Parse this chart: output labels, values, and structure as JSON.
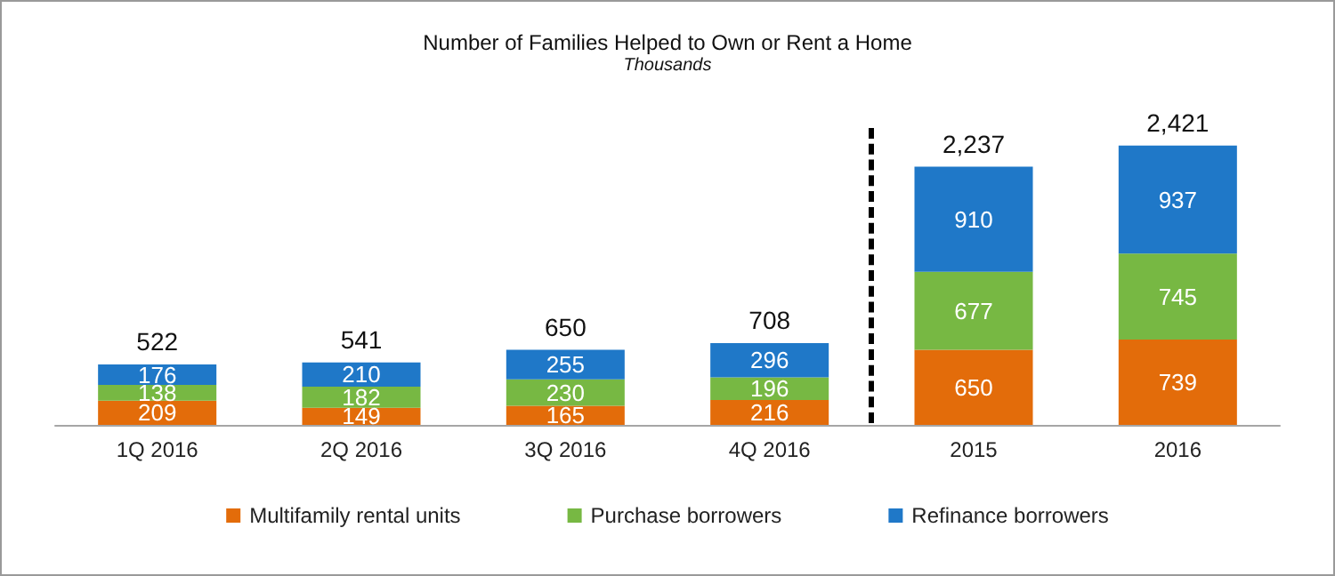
{
  "chart_data": {
    "type": "bar",
    "title": "Number of Families Helped to Own or Rent a Home",
    "subtitle": "Thousands",
    "categories": [
      "1Q 2016",
      "2Q 2016",
      "3Q 2016",
      "4Q 2016",
      "2015",
      "2016"
    ],
    "stacked": true,
    "data_labels": true,
    "legend": "bottom",
    "series": [
      {
        "name": "Multifamily rental units",
        "color": "#e36c0a",
        "values": [
          209,
          149,
          165,
          216,
          650,
          739
        ]
      },
      {
        "name": "Purchase borrowers",
        "color": "#77b843",
        "values": [
          138,
          182,
          230,
          196,
          677,
          745
        ]
      },
      {
        "name": "Refinance borrowers",
        "color": "#1f78c8",
        "values": [
          176,
          210,
          255,
          296,
          910,
          937
        ]
      }
    ],
    "totals": [
      "522",
      "541",
      "650",
      "708",
      "2,237",
      "2,421"
    ]
  }
}
